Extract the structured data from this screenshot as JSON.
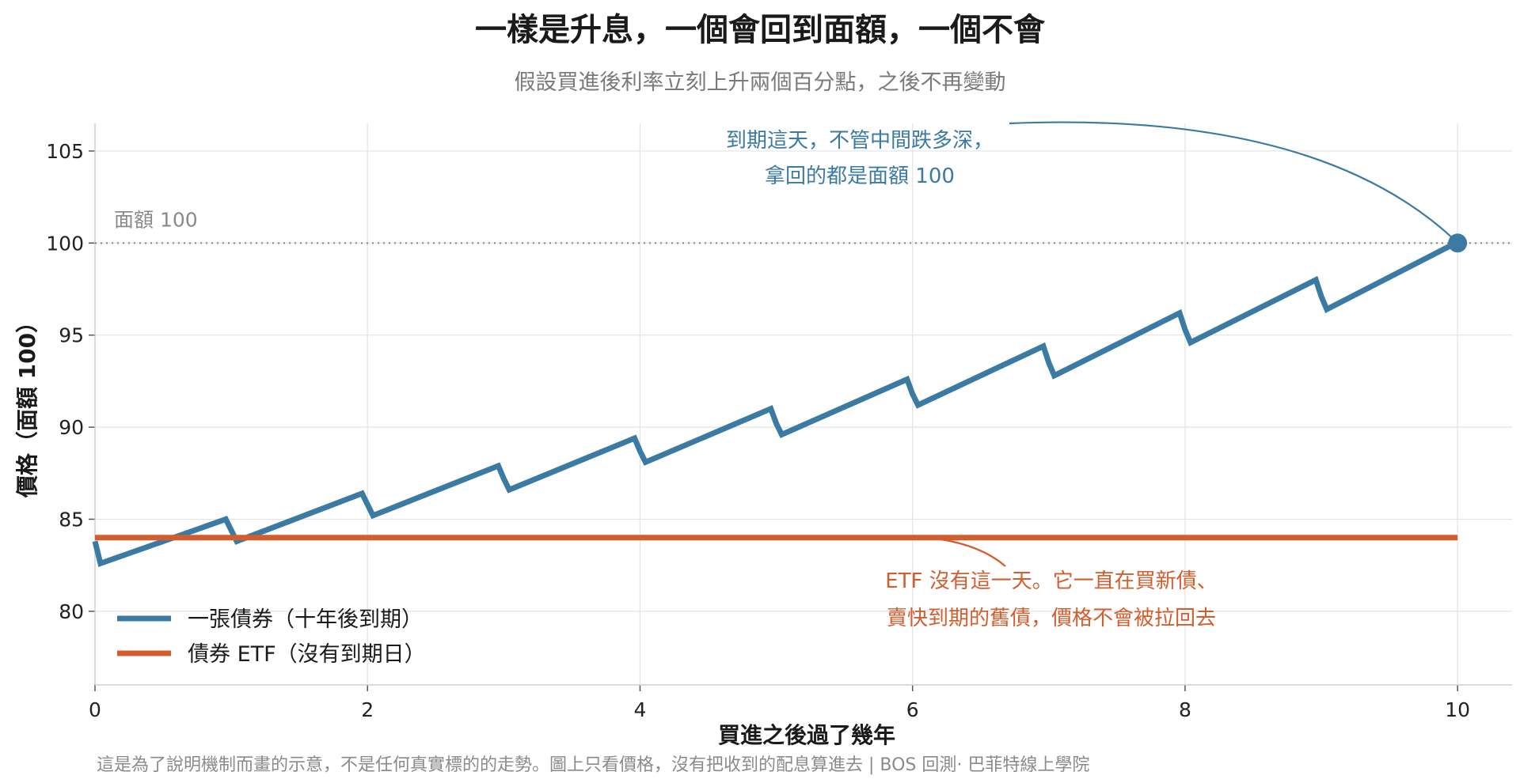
{
  "chart_data": {
    "type": "line",
    "title": "一樣是升息，一個會回到面額，一個不會",
    "subtitle": "假設買進後利率立刻上升兩個百分點，之後不再變動",
    "xlabel": "買進之後過了幾年",
    "ylabel": "價格（面額 100）",
    "xlim": [
      0,
      10.4
    ],
    "ylim": [
      76,
      106.5
    ],
    "x_ticks": [
      "0",
      "2",
      "4",
      "6",
      "8",
      "10"
    ],
    "y_ticks": [
      "80",
      "85",
      "90",
      "95",
      "100",
      "105"
    ],
    "grid": true,
    "legend_position": "bottom-left",
    "reference_line": {
      "y": 100,
      "label": "面額 100"
    },
    "series": [
      {
        "name": "一張債券（十年後到期）",
        "color": "#3b7aa3",
        "x": [
          0,
          0.04,
          0.96,
          1.0,
          1.04,
          1.96,
          2.0,
          2.04,
          2.96,
          3.0,
          3.04,
          3.96,
          4.0,
          4.04,
          4.96,
          5.0,
          5.04,
          5.96,
          6.0,
          6.04,
          6.96,
          7.0,
          7.04,
          7.96,
          8.0,
          8.04,
          8.96,
          9.0,
          9.04,
          9.96,
          10.0
        ],
        "y": [
          83.8,
          82.6,
          85.0,
          84.4,
          83.8,
          86.4,
          85.8,
          85.2,
          87.9,
          87.2,
          86.6,
          89.4,
          88.7,
          88.1,
          91.0,
          90.2,
          89.6,
          92.6,
          91.8,
          91.2,
          94.4,
          93.5,
          92.8,
          96.2,
          95.3,
          94.6,
          98.0,
          97.1,
          96.4,
          99.9,
          100
        ]
      },
      {
        "name": "債券 ETF（沒有到期日）",
        "color": "#d45d2e",
        "x": [
          0,
          10
        ],
        "y": [
          84,
          84
        ]
      }
    ],
    "annotations": {
      "maturity": {
        "lines": [
          "到期這天，不管中間跌多深，",
          "拿回的都是面額 100"
        ],
        "point": {
          "x": 10,
          "y": 100
        }
      },
      "etf": {
        "lines": [
          "ETF 沒有這一天。它一直在買新債、",
          "賣快到期的舊債，價格不會被拉回去"
        ],
        "point": {
          "x": 6.2,
          "y": 84
        }
      }
    }
  },
  "footnote": "這是為了說明機制而畫的示意，不是任何真實標的的走勢。圖上只看價格，沒有把收到的配息算進去 | BOS 回測· 巴菲特線上學院",
  "colors": {
    "bond": "#3b7aa3",
    "etf": "#d45d2e",
    "grid": "#e3e3e3",
    "reference": "#8a8a8a"
  }
}
